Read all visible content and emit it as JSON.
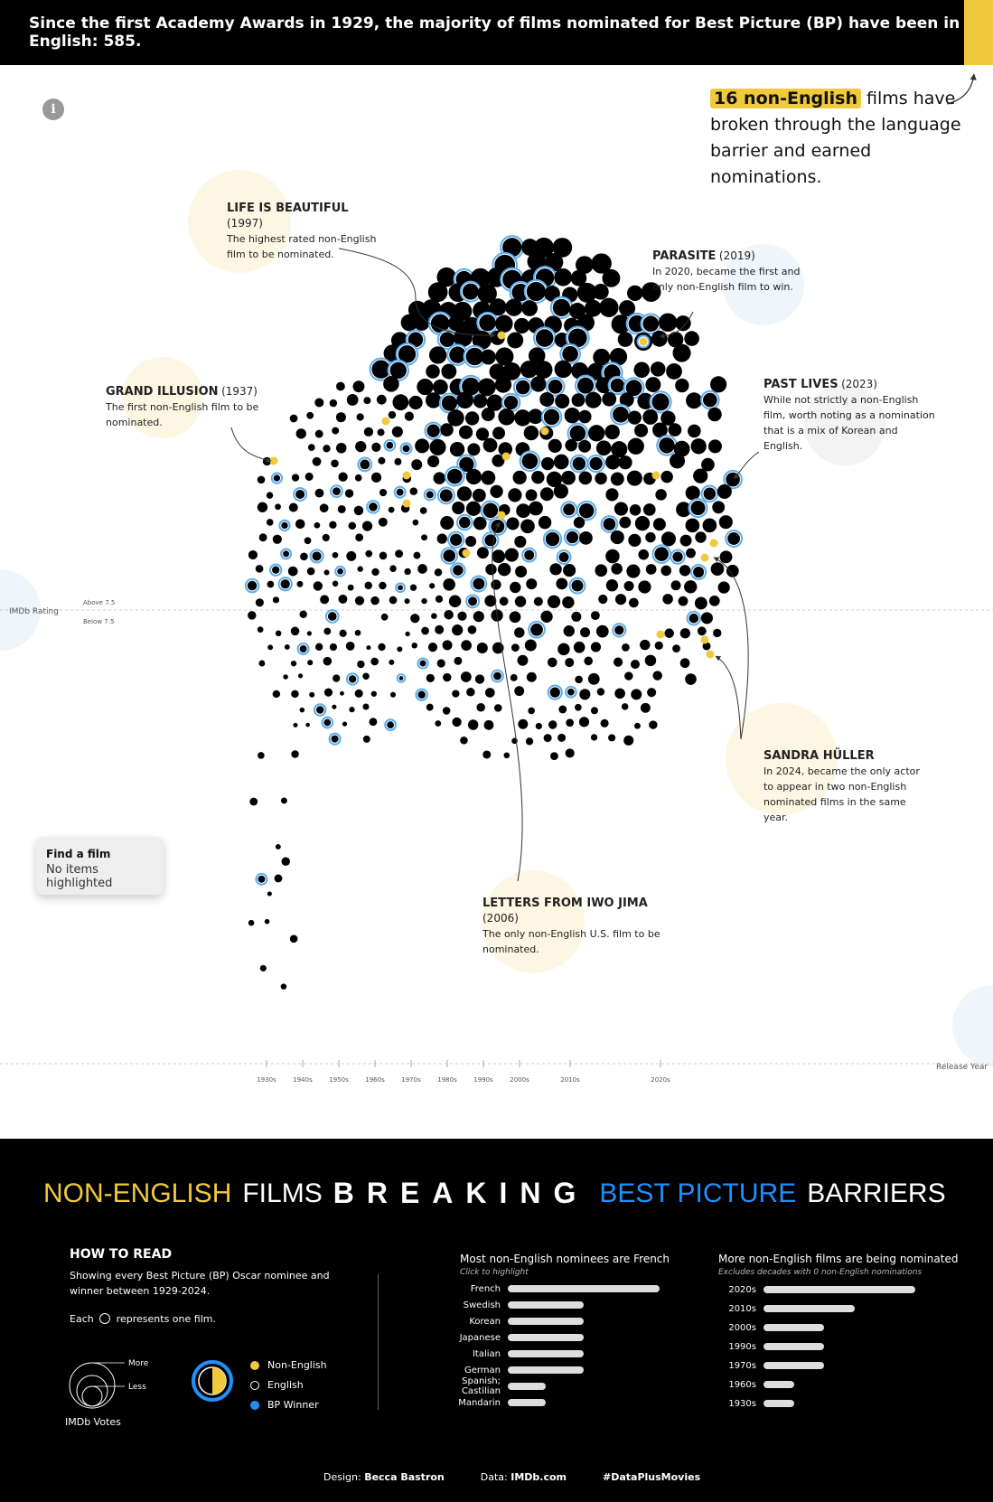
{
  "header": {
    "title": "Since the first Academy Awards in 1929, the majority of films nominated for Best Picture (BP) have been in English: 585."
  },
  "intro": {
    "highlight": "16 non-English",
    "rest": " films have broken through the language barrier and earned nominations."
  },
  "info_icon": "info-icon",
  "annotations": {
    "life": {
      "title": "LIFE IS BEAUTIFUL",
      "year": "(1997)",
      "text": "The highest rated non-English film to be nominated."
    },
    "parasite": {
      "title": "PARASITE",
      "year": "(2019)",
      "text": "In 2020, became the first and only non-English film to win."
    },
    "grand": {
      "title": "GRAND ILLUSION",
      "year": "(1937)",
      "text": "The first non-English film to be nominated."
    },
    "past": {
      "title": "PAST LIVES",
      "year": "(2023)",
      "text": "While not strictly a non-English film, worth noting as a nomination that is a mix of Korean and English."
    },
    "sandra": {
      "title": "SANDRA HÜLLER",
      "year": "",
      "text": "In 2024, became the only actor to appear in two non-English nominated films in the same year."
    },
    "letters": {
      "title": "LETTERS FROM IWO JIMA",
      "year": "(2006)",
      "text": "The only non-English U.S. film to be nominated."
    }
  },
  "find": {
    "title": "Find a film",
    "status": "No items highlighted"
  },
  "axis": {
    "y_label": "IMDb Rating",
    "above": "Above 7.5",
    "below": "Below 7.5",
    "x_label": "Release Year",
    "decades": [
      "1930s",
      "1940s",
      "1950s",
      "1960s",
      "1970s",
      "1980s",
      "1990s",
      "2000s",
      "2010s",
      "2020s"
    ]
  },
  "footer": {
    "title_parts": {
      "a": "NON-ENGLISH",
      "b": "FILMS",
      "c": "BREAKING",
      "d": "BEST PICTURE",
      "e": "BARRIERS"
    },
    "howto": {
      "heading": "HOW TO READ",
      "line1": "Showing every Best Picture (BP) Oscar nominee and winner between 1929-2024.",
      "line2a": "Each",
      "line2b": "represents one film.",
      "more": "More",
      "less": "Less",
      "votes": "IMDb Votes"
    },
    "legend": {
      "non_english": "Non-English",
      "english": "English",
      "winner": "BP Winner"
    },
    "languages": {
      "title": "Most non-English nominees are French",
      "subtitle": "Click to highlight"
    },
    "decades": {
      "title": "More non-English films are being nominated",
      "subtitle": "Excludes decades with 0 non-English nominations"
    },
    "credits": {
      "design_label": "Design:",
      "design": "Becca Bastron",
      "data_label": "Data:",
      "data": "IMDb.com",
      "tag": "#DataPlusMovies"
    }
  },
  "colors": {
    "yellow": "#f0c93c",
    "blue": "#3aa0f0",
    "black": "#000000"
  },
  "chart_data": [
    {
      "type": "bar",
      "title": "Most non-English nominees are French",
      "categories": [
        "French",
        "Swedish",
        "Korean",
        "Japanese",
        "Italian",
        "German",
        "Spanish; Castilian",
        "Mandarin"
      ],
      "values": [
        4,
        2,
        2,
        2,
        2,
        2,
        1,
        1
      ]
    },
    {
      "type": "bar",
      "title": "More non-English films are being nominated",
      "categories": [
        "2020s",
        "2010s",
        "2000s",
        "1990s",
        "1970s",
        "1960s",
        "1930s"
      ],
      "values": [
        5,
        3,
        2,
        2,
        2,
        1,
        1
      ]
    }
  ]
}
